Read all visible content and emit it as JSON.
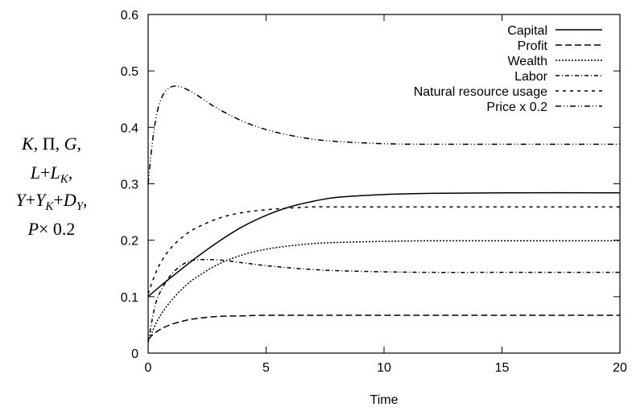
{
  "chart_data": {
    "type": "line",
    "xlabel": "Time",
    "ylabel_lines": [
      [
        {
          "t": "K",
          "i": true
        },
        {
          "t": ", Π, "
        },
        {
          "t": "G",
          "i": true
        },
        {
          "t": ","
        }
      ],
      [
        {
          "t": "L",
          "i": true
        },
        {
          "t": "+"
        },
        {
          "t": "L",
          "i": true
        },
        {
          "t": "K",
          "i": true,
          "sub": true
        },
        {
          "t": ","
        }
      ],
      [
        {
          "t": "Y",
          "i": true
        },
        {
          "t": "+"
        },
        {
          "t": "Y",
          "i": true
        },
        {
          "t": "K",
          "i": true,
          "sub": true
        },
        {
          "t": "+"
        },
        {
          "t": "D",
          "i": true
        },
        {
          "t": "Y",
          "i": true,
          "sub": true
        },
        {
          "t": ","
        }
      ],
      [
        {
          "t": "P",
          "i": true
        },
        {
          "t": "× 0.2"
        }
      ]
    ],
    "xlim": [
      0,
      20
    ],
    "ylim": [
      0,
      0.6
    ],
    "xticks": [
      0,
      5,
      10,
      15,
      20
    ],
    "xtick_labels": [
      "0",
      "5",
      "10",
      "15",
      "20"
    ],
    "yticks": [
      0,
      0.1,
      0.2,
      0.3,
      0.4,
      0.5,
      0.6
    ],
    "ytick_labels": [
      "0",
      "0.1",
      "0.2",
      "0.3",
      "0.4",
      "0.5",
      "0.6"
    ],
    "grid": false,
    "legend_position": "top-right",
    "series": [
      {
        "name": "Capital",
        "dash": "none",
        "x": [
          0,
          0.5,
          1,
          2,
          3,
          4,
          5,
          6,
          7,
          8,
          10,
          12,
          15,
          20
        ],
        "y": [
          0.1,
          0.118,
          0.135,
          0.168,
          0.198,
          0.224,
          0.244,
          0.259,
          0.269,
          0.276,
          0.281,
          0.283,
          0.284,
          0.284
        ]
      },
      {
        "name": "Profit",
        "dash": "8,4",
        "x": [
          0,
          0.3,
          0.6,
          1,
          1.5,
          2,
          3,
          4,
          5,
          7,
          10,
          15,
          20
        ],
        "y": [
          0.025,
          0.036,
          0.044,
          0.051,
          0.057,
          0.061,
          0.065,
          0.066,
          0.067,
          0.067,
          0.067,
          0.067,
          0.067
        ]
      },
      {
        "name": "Wealth",
        "dash": "2,2",
        "x": [
          0,
          0.3,
          0.6,
          1,
          1.5,
          2,
          3,
          4,
          5,
          6,
          7,
          8,
          10,
          12,
          15,
          20
        ],
        "y": [
          0.02,
          0.05,
          0.072,
          0.094,
          0.116,
          0.133,
          0.158,
          0.174,
          0.184,
          0.19,
          0.194,
          0.196,
          0.198,
          0.199,
          0.199,
          0.199
        ]
      },
      {
        "name": "Labor",
        "dash": "5,3,1,3",
        "x": [
          0,
          0.3,
          0.6,
          1,
          1.5,
          2,
          3,
          4,
          5,
          6,
          7,
          8,
          10,
          12,
          15,
          20
        ],
        "y": [
          0.02,
          0.085,
          0.115,
          0.14,
          0.158,
          0.165,
          0.165,
          0.16,
          0.155,
          0.151,
          0.148,
          0.146,
          0.144,
          0.143,
          0.143,
          0.143
        ]
      },
      {
        "name": "Natural resource usage",
        "dash": "4,5",
        "x": [
          0,
          0.3,
          0.6,
          1,
          1.5,
          2,
          3,
          4,
          5,
          6,
          7,
          8,
          10,
          15,
          20
        ],
        "y": [
          0.105,
          0.14,
          0.165,
          0.188,
          0.207,
          0.221,
          0.239,
          0.249,
          0.254,
          0.257,
          0.259,
          0.259,
          0.259,
          0.259,
          0.259
        ]
      },
      {
        "name": "Price x 0.2",
        "dash": "7,3,1,3,1,3",
        "x": [
          0,
          0.2,
          0.4,
          0.6,
          0.8,
          1.0,
          1.2,
          1.5,
          2,
          2.5,
          3,
          4,
          5,
          6,
          7,
          8,
          10,
          12,
          15,
          20
        ],
        "y": [
          0.3,
          0.38,
          0.43,
          0.455,
          0.467,
          0.472,
          0.473,
          0.47,
          0.459,
          0.445,
          0.432,
          0.411,
          0.396,
          0.386,
          0.379,
          0.375,
          0.371,
          0.37,
          0.37,
          0.37
        ]
      }
    ]
  }
}
